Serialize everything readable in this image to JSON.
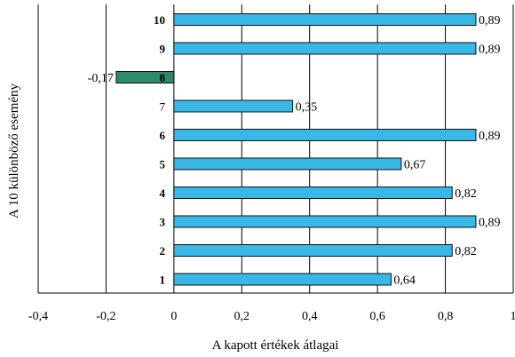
{
  "chart_data": {
    "type": "bar",
    "orientation": "horizontal",
    "title": "",
    "xlabel": "A kapott értékek átlagai",
    "ylabel": "A 10 különböző esemény",
    "xlim": [
      -0.4,
      1.0
    ],
    "x_ticks": [
      "-0,4",
      "-0,2",
      "0",
      "0,2",
      "0,4",
      "0,6",
      "0,8",
      "1"
    ],
    "grid": "vertical",
    "categories": [
      "10",
      "9",
      "8",
      "7",
      "6",
      "5",
      "4",
      "3",
      "2",
      "1"
    ],
    "values": [
      0.89,
      0.89,
      -0.17,
      0.35,
      0.89,
      0.67,
      0.82,
      0.89,
      0.82,
      0.64
    ],
    "value_labels": [
      "0,89",
      "0,89",
      "-0,17",
      "0,35",
      "0,89",
      "0,67",
      "0,82",
      "0,89",
      "0,82",
      "0,64"
    ],
    "bold_categories": [
      "10",
      "9",
      "8",
      "6",
      "5",
      "4",
      "3",
      "2",
      "1"
    ],
    "colors": {
      "positive_bar": "#39b8e8",
      "negative_bar": "#2e8b6a",
      "bar_stroke": "#111111",
      "grid": "#000000",
      "axis": "#000000",
      "text": "#000000"
    }
  }
}
